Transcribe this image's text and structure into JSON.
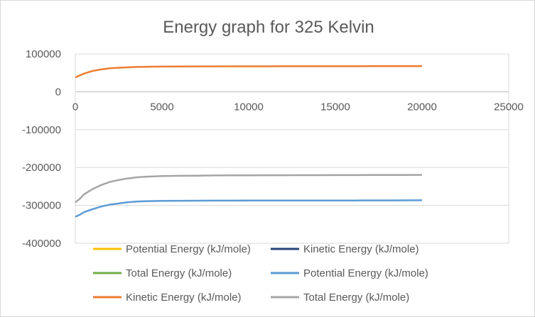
{
  "chart_data": {
    "type": "line",
    "title": "Energy graph for 325 Kelvin",
    "xlabel": "",
    "ylabel": "",
    "xlim": [
      0,
      25000
    ],
    "ylim": [
      -400000,
      100000
    ],
    "x_ticks": [
      0,
      5000,
      10000,
      15000,
      20000,
      25000
    ],
    "y_ticks": [
      100000,
      0,
      -100000,
      -200000,
      -300000,
      -400000
    ],
    "x_tick_labels": [
      "0",
      "5000",
      "10000",
      "15000",
      "20000",
      "25000"
    ],
    "y_tick_labels": [
      "100000",
      "0",
      "-100000",
      "-200000",
      "-300000",
      "-400000"
    ],
    "grid": "horizontal",
    "legend_position": "bottom",
    "series": [
      {
        "name": "Potential Energy (kJ/mole)",
        "color": "#ffc000",
        "x": [
          0,
          20000
        ],
        "y": [
          -330000,
          -286000
        ],
        "visible": false
      },
      {
        "name": "Kinetic Energy (kJ/mole)",
        "color": "#264478",
        "x": [
          0,
          20000
        ],
        "y": [
          38000,
          68000
        ],
        "visible": false
      },
      {
        "name": "Total Energy (kJ/mole)",
        "color": "#70ad47",
        "x": [
          0,
          20000
        ],
        "y": [
          -292000,
          -219000
        ],
        "visible": false
      },
      {
        "name": "Potential Energy (kJ/mole)",
        "color": "#5b9bd5",
        "x": [
          0,
          250,
          500,
          1000,
          1500,
          2000,
          2500,
          3000,
          3500,
          4000,
          4500,
          5000,
          6000,
          7000,
          8000,
          9000,
          10000,
          11000,
          12000,
          13000,
          14000,
          15000,
          16000,
          17000,
          18000,
          19000,
          20000
        ],
        "y": [
          -330000,
          -325000,
          -318000,
          -310000,
          -303000,
          -298000,
          -295000,
          -292000,
          -290000,
          -289000,
          -288500,
          -288000,
          -287800,
          -287600,
          -287500,
          -287400,
          -287300,
          -287200,
          -287200,
          -287100,
          -287100,
          -287000,
          -287000,
          -286900,
          -286800,
          -286700,
          -286500
        ]
      },
      {
        "name": "Kinetic Energy (kJ/mole)",
        "color": "#ed7d31",
        "x": [
          0,
          250,
          500,
          1000,
          1500,
          2000,
          2500,
          3000,
          3500,
          4000,
          4500,
          5000,
          6000,
          7000,
          8000,
          9000,
          10000,
          11000,
          12000,
          13000,
          14000,
          15000,
          16000,
          17000,
          18000,
          19000,
          20000
        ],
        "y": [
          38000,
          43000,
          48000,
          55000,
          59000,
          62000,
          63500,
          64500,
          65500,
          66000,
          66300,
          66500,
          66800,
          67000,
          67100,
          67200,
          67300,
          67300,
          67400,
          67400,
          67500,
          67500,
          67500,
          67600,
          67600,
          67700,
          67700
        ]
      },
      {
        "name": "Total Energy (kJ/mole)",
        "color": "#a5a5a5",
        "x": [
          0,
          250,
          500,
          1000,
          1500,
          2000,
          2500,
          3000,
          3500,
          4000,
          4500,
          5000,
          6000,
          7000,
          8000,
          9000,
          10000,
          11000,
          12000,
          13000,
          14000,
          15000,
          16000,
          17000,
          18000,
          19000,
          20000
        ],
        "y": [
          -292000,
          -283000,
          -271000,
          -257000,
          -246000,
          -238000,
          -233000,
          -229000,
          -226000,
          -224500,
          -223500,
          -222500,
          -222000,
          -221500,
          -221000,
          -220800,
          -220600,
          -220500,
          -220400,
          -220300,
          -220200,
          -220100,
          -220000,
          -219900,
          -219700,
          -219600,
          -219500
        ]
      }
    ]
  }
}
